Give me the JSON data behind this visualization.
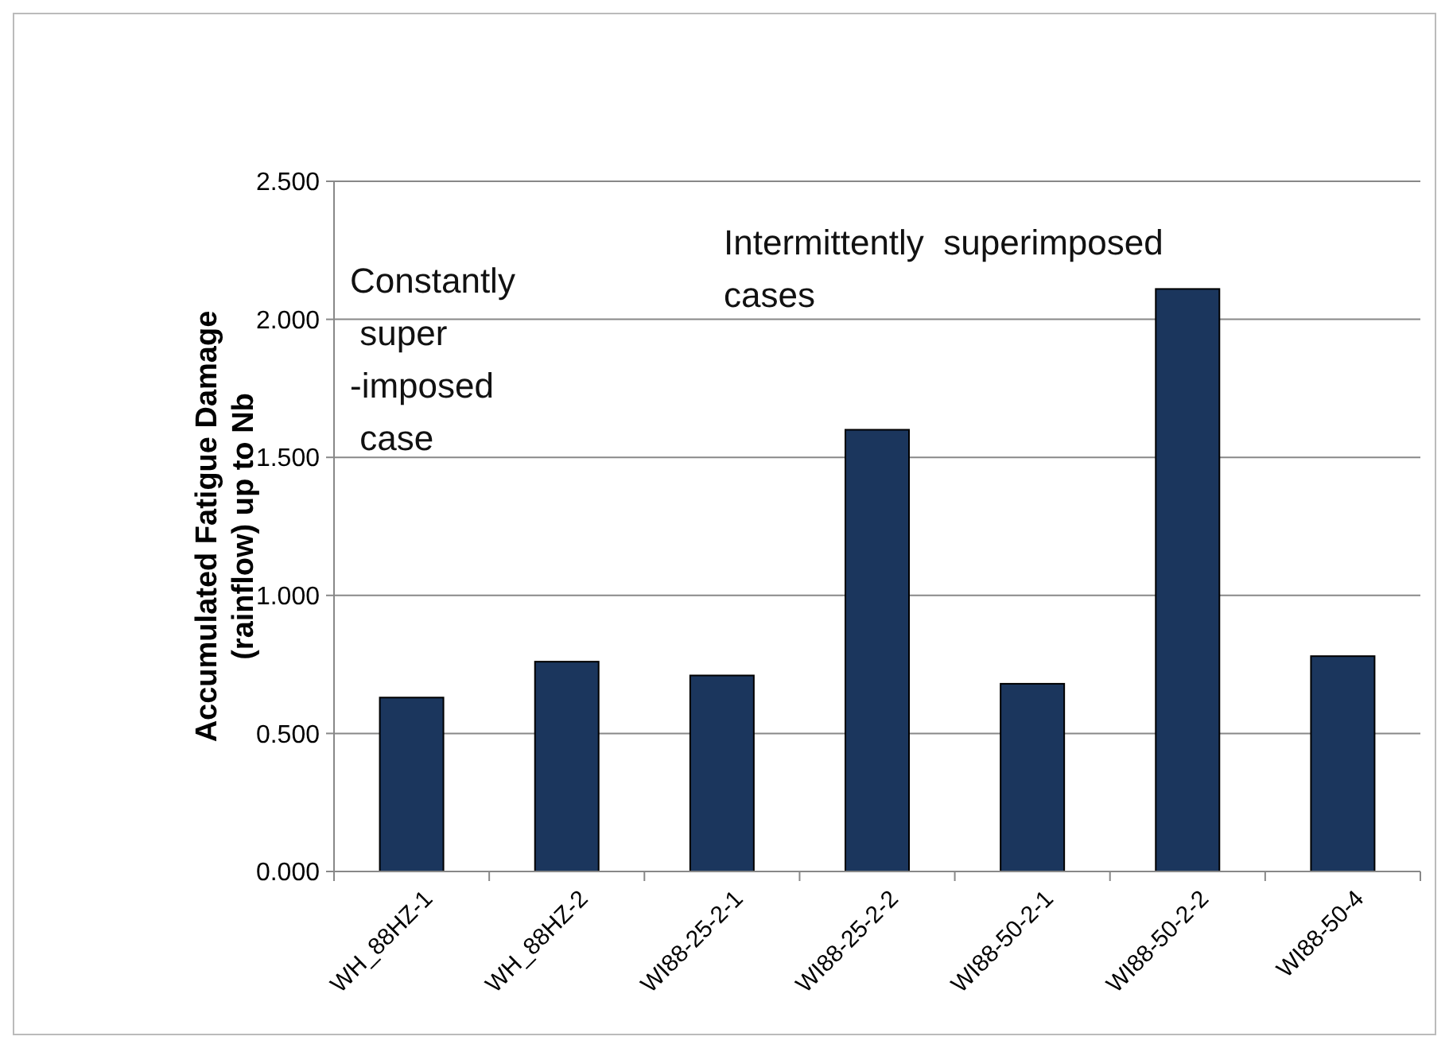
{
  "chart_data": {
    "type": "bar",
    "ylabel": "Accumulated Fatigue Damage (rainflow) up to Nb",
    "categories": [
      "WH_88HZ-1",
      "WH_88HZ-2",
      "WI88-25-2-1",
      "WI88-25-2-2",
      "WI88-50-2-1",
      "WI88-50-2-2",
      "WI88-50-4"
    ],
    "values": [
      0.63,
      0.76,
      0.71,
      1.6,
      0.68,
      2.11,
      0.78
    ],
    "color": "#1b365d",
    "ylim": [
      0,
      2.5
    ],
    "yticks": [
      {
        "value": 0,
        "label": "0.000"
      },
      {
        "value": 0.5,
        "label": "0.500"
      },
      {
        "value": 1,
        "label": "1.000"
      },
      {
        "value": 1.5,
        "label": "1.500"
      },
      {
        "value": 2,
        "label": "2.000"
      },
      {
        "value": 2.5,
        "label": "2.500"
      }
    ],
    "grid": "y",
    "annotations": [
      "Constantly\n super\n-imposed\n case",
      "Intermittently  superimposed\ncases"
    ]
  }
}
